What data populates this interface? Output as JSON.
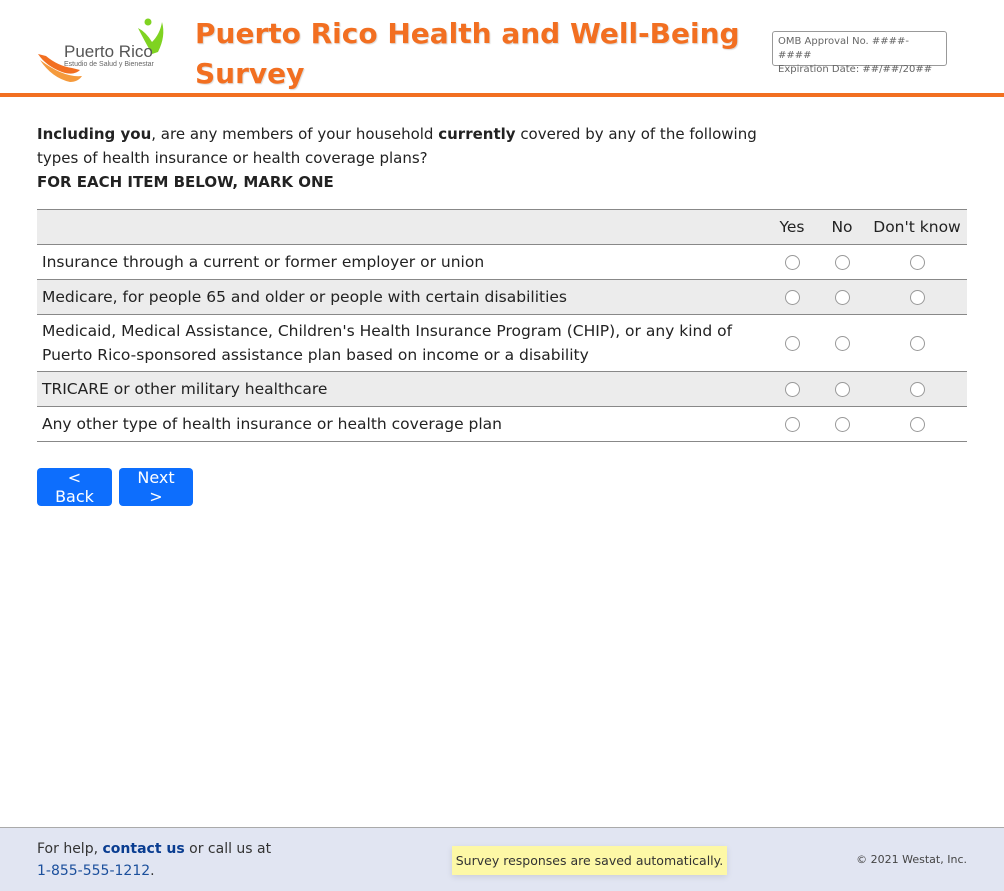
{
  "header": {
    "logo_name": "Puerto Rico",
    "logo_sub": "Estudio de Salud y Bienestar",
    "title": "Puerto Rico Health and Well-Being Survey",
    "omb_line1": "OMB Approval No. ####-####",
    "omb_line2": "Expiration Date: ##/##/20##",
    "accent": "#f26f21"
  },
  "question": {
    "part1": "Including you",
    "part2": ", are any members of your household ",
    "part3": "currently",
    "part4": " covered by any of the following types of health insurance or health coverage plans?",
    "instruction": "FOR EACH ITEM BELOW, MARK ONE"
  },
  "table": {
    "columns": [
      "Yes",
      "No",
      "Don't know"
    ],
    "rows": [
      {
        "label": "Insurance through a current or former employer or union"
      },
      {
        "label": "Medicare, for people 65 and older or people with certain disabilities"
      },
      {
        "label": "Medicaid, Medical Assistance, Children's Health Insurance Program (CHIP), or any kind of Puerto Rico-sponsored assistance plan based on income or a disability"
      },
      {
        "label": "TRICARE or other military healthcare"
      },
      {
        "label": "Any other type of health insurance or health coverage plan"
      }
    ]
  },
  "nav": {
    "back": "< Back",
    "next": "Next >"
  },
  "footer": {
    "help_prefix": "For help, ",
    "contact": "contact us",
    "help_suffix": " or call us at",
    "phone": "1-855-555-1212",
    "phone_end": ".",
    "saved": "Survey responses are saved automatically.",
    "copyright": "© 2021 Westat, Inc."
  }
}
